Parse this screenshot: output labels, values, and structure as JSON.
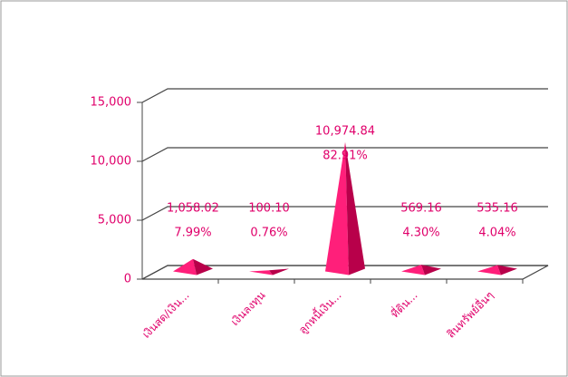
{
  "chart_data": {
    "type": "pyramid3d",
    "categories": [
      "เงินสด/เงิน...",
      "เงินลงทุน",
      "ลูกหนี้เงิน...",
      "ที่ดิน...",
      "สินทรัพย์อื่นๆ"
    ],
    "values": [
      1058.02,
      100.1,
      10974.84,
      569.16,
      535.16
    ],
    "value_labels": [
      "1,058.02",
      "100.10",
      "10,974.84",
      "569.16",
      "535.16"
    ],
    "percent_labels": [
      "7.99%",
      "0.76%",
      "82.91%",
      "4.30%",
      "4.04%"
    ],
    "color": "#ff1f7a",
    "ylim": [
      0,
      15000
    ],
    "yticks": [
      0,
      {
        "value": 5000,
        "label": "5,000"
      },
      {
        "value": 10000,
        "label": "10,000"
      },
      {
        "value": 15000,
        "label": "15,000"
      }
    ],
    "grid": true
  }
}
